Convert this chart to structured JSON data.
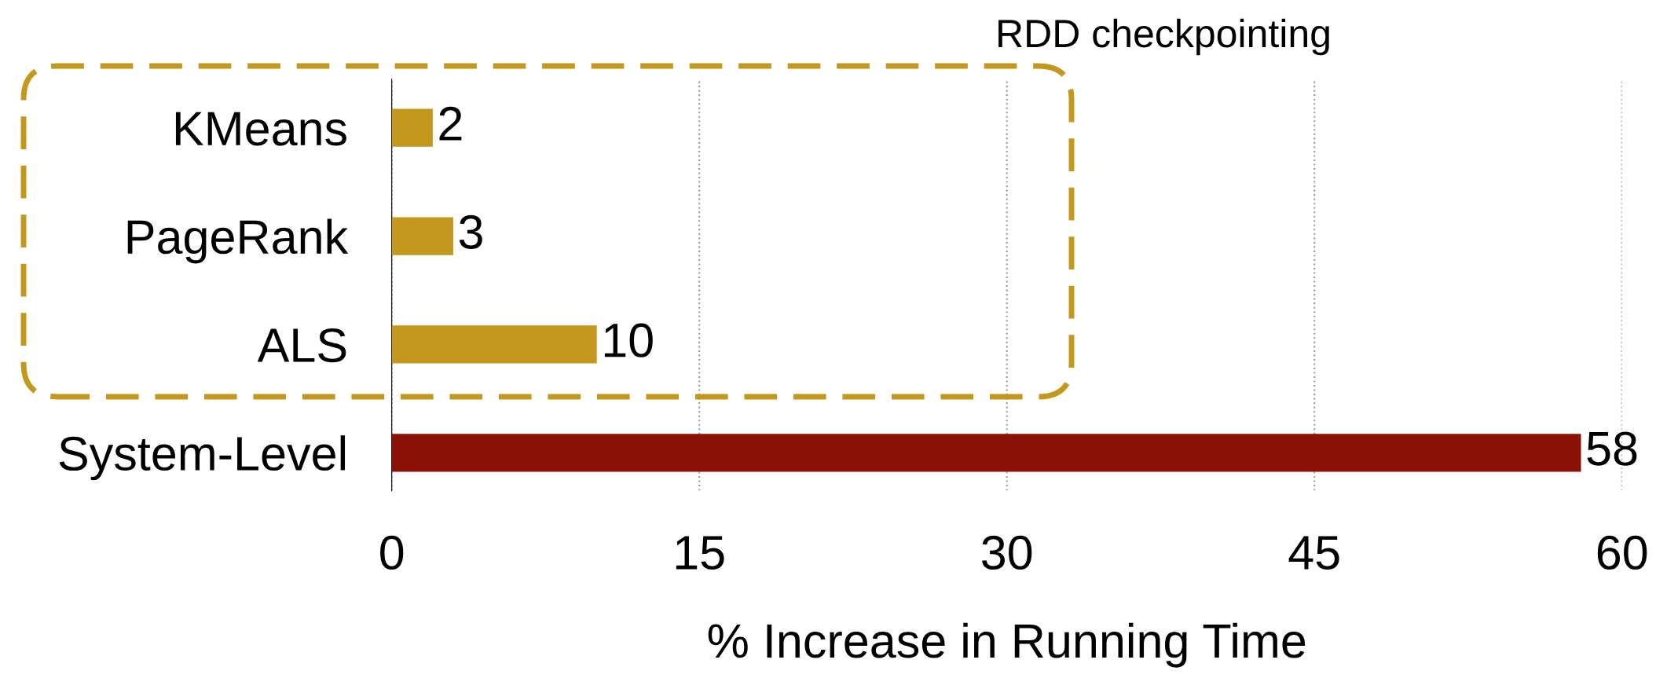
{
  "chart_data": {
    "type": "bar",
    "orientation": "horizontal",
    "xlabel": "% Increase in Running Time",
    "categories": [
      "KMeans",
      "PageRank",
      "ALS",
      "System-Level"
    ],
    "values": [
      2,
      3,
      10,
      58
    ],
    "colors": [
      "#c4981c",
      "#c4981c",
      "#c4981c",
      "#8b1106"
    ],
    "xlim": [
      0,
      60
    ],
    "xticks": [
      0,
      15,
      30,
      45,
      60
    ],
    "grid": "x",
    "data_labels": true,
    "annotations": [
      "RDD checkpointing"
    ]
  }
}
